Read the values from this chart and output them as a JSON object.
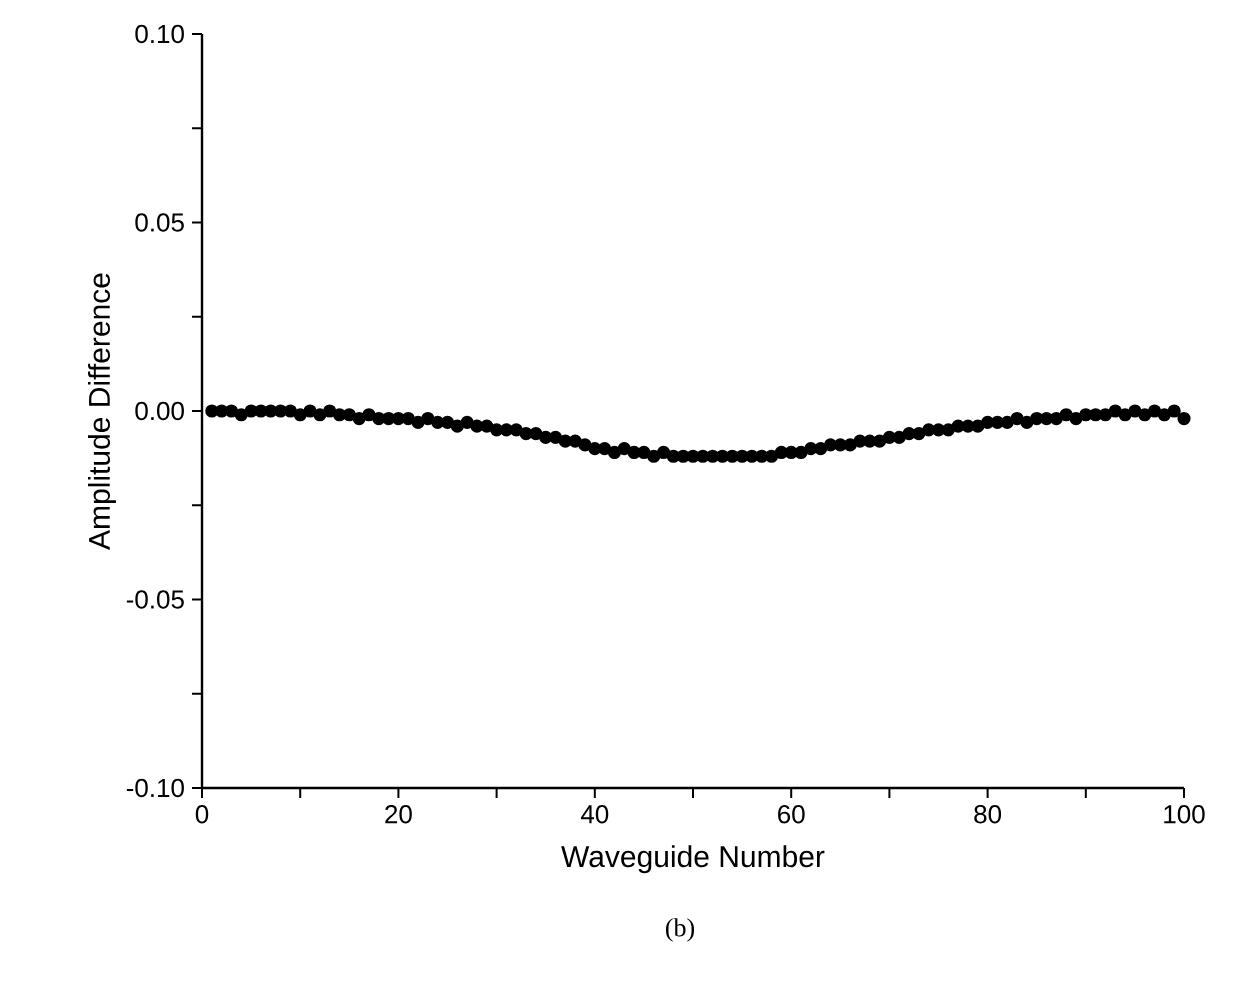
{
  "chart_data": {
    "type": "scatter",
    "xlabel": "Waveguide Number",
    "ylabel": "Amplitude Difference",
    "annotations": [
      "(b)"
    ],
    "x": [
      1,
      2,
      3,
      4,
      5,
      6,
      7,
      8,
      9,
      10,
      11,
      12,
      13,
      14,
      15,
      16,
      17,
      18,
      19,
      20,
      21,
      22,
      23,
      24,
      25,
      26,
      27,
      28,
      29,
      30,
      31,
      32,
      33,
      34,
      35,
      36,
      37,
      38,
      39,
      40,
      41,
      42,
      43,
      44,
      45,
      46,
      47,
      48,
      49,
      50,
      51,
      52,
      53,
      54,
      55,
      56,
      57,
      58,
      59,
      60,
      61,
      62,
      63,
      64,
      65,
      66,
      67,
      68,
      69,
      70,
      71,
      72,
      73,
      74,
      75,
      76,
      77,
      78,
      79,
      80,
      81,
      82,
      83,
      84,
      85,
      86,
      87,
      88,
      89,
      90,
      91,
      92,
      93,
      94,
      95,
      96,
      97,
      98,
      99,
      100
    ],
    "series": [
      {
        "color": "#000000",
        "values": [
          0,
          0,
          0,
          -0.001,
          0,
          0,
          0,
          0,
          0,
          -0.001,
          0,
          -0.001,
          0,
          -0.001,
          -0.001,
          -0.002,
          -0.001,
          -0.002,
          -0.002,
          -0.002,
          -0.002,
          -0.003,
          -0.002,
          -0.003,
          -0.003,
          -0.004,
          -0.003,
          -0.004,
          -0.004,
          -0.005,
          -0.005,
          -0.005,
          -0.006,
          -0.006,
          -0.007,
          -0.007,
          -0.008,
          -0.008,
          -0.009,
          -0.01,
          -0.01,
          -0.011,
          -0.01,
          -0.011,
          -0.011,
          -0.012,
          -0.011,
          -0.012,
          -0.012,
          -0.012,
          -0.012,
          -0.012,
          -0.012,
          -0.012,
          -0.012,
          -0.012,
          -0.012,
          -0.012,
          -0.011,
          -0.011,
          -0.011,
          -0.01,
          -0.01,
          -0.009,
          -0.009,
          -0.009,
          -0.008,
          -0.008,
          -0.008,
          -0.007,
          -0.007,
          -0.006,
          -0.006,
          -0.005,
          -0.005,
          -0.005,
          -0.004,
          -0.004,
          -0.004,
          -0.003,
          -0.003,
          -0.003,
          -0.002,
          -0.003,
          -0.002,
          -0.002,
          -0.002,
          -0.001,
          -0.002,
          -0.001,
          -0.001,
          -0.001,
          0,
          -0.001,
          0,
          -0.001,
          0,
          -0.001,
          0,
          -0.002
        ]
      }
    ],
    "xlim": [
      0,
      100
    ],
    "xticks": [
      0,
      {
        "value": 10,
        "label": null
      },
      20,
      {
        "value": 30,
        "label": null
      },
      40,
      {
        "value": 50,
        "label": null
      },
      60,
      {
        "value": 70,
        "label": null
      },
      80,
      {
        "value": 90,
        "label": null
      },
      100
    ],
    "ylim": [
      -0.1,
      0.1
    ],
    "yticks": [
      {
        "value": -0.1,
        "label": "-0.10"
      },
      {
        "value": -0.075,
        "label": null
      },
      {
        "value": -0.05,
        "label": "-0.05"
      },
      {
        "value": -0.025,
        "label": null
      },
      {
        "value": 0,
        "label": "0.00"
      },
      {
        "value": 0.025,
        "label": null
      },
      {
        "value": 0.05,
        "label": "0.05"
      },
      {
        "value": 0.075,
        "label": null
      },
      {
        "value": 0.1,
        "label": "0.10"
      }
    ],
    "marker": "circle"
  }
}
